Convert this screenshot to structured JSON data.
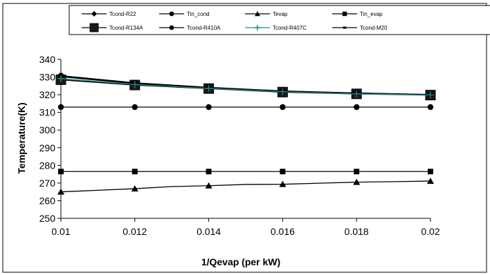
{
  "chart_data": {
    "type": "line",
    "title": "",
    "xlabel": "1/Qevap (per kW)",
    "ylabel": "Temperature(K)",
    "x": [
      0.01,
      0.012,
      0.014,
      0.016,
      0.018,
      0.02
    ],
    "x_tick_labels": [
      "0.01",
      "0.012",
      "0.014",
      "0.016",
      "0.018",
      "0.02"
    ],
    "xlim": [
      0.01,
      0.02
    ],
    "ylim": [
      250,
      340
    ],
    "y_tick_labels": [
      "250",
      "260",
      "270",
      "280",
      "290",
      "300",
      "310",
      "320",
      "330",
      "340"
    ],
    "grid": false,
    "legend_position": "top",
    "series": [
      {
        "name": "Tcond-R22",
        "marker": "diamond",
        "color": "#000000",
        "x": [
          0.01,
          0.012,
          0.014,
          0.016,
          0.018,
          0.02
        ],
        "values": [
          330.5,
          326.5,
          324,
          322,
          321,
          320
        ]
      },
      {
        "name": "Tin_cond",
        "marker": "circle",
        "color": "#000000",
        "x": [
          0.01,
          0.012,
          0.014,
          0.016,
          0.018,
          0.02
        ],
        "values": [
          313,
          313,
          313,
          313,
          313,
          313
        ]
      },
      {
        "name": "Tevap",
        "marker": "triangle",
        "color": "#000000",
        "x": [
          0.01,
          0.012,
          0.013,
          0.014,
          0.015,
          0.016,
          0.017,
          0.018,
          0.019,
          0.02
        ],
        "values": [
          265,
          266.8,
          268,
          268.5,
          269.2,
          269.3,
          269.9,
          270.5,
          270.8,
          271.1
        ],
        "marker_x": [
          0.01,
          0.012,
          0.014,
          0.016,
          0.018,
          0.02
        ]
      },
      {
        "name": "Tin_evap",
        "marker": "square",
        "color": "#000000",
        "x": [
          0.01,
          0.012,
          0.014,
          0.016,
          0.018,
          0.02
        ],
        "values": [
          276.5,
          276.5,
          276.5,
          276.5,
          276.5,
          276.5
        ]
      },
      {
        "name": "Tcond-R134A",
        "marker": "big-square",
        "color": "#000000",
        "x": [
          0.01,
          0.012,
          0.014,
          0.016,
          0.018,
          0.02
        ],
        "values": [
          328.5,
          325.5,
          323.5,
          321.5,
          320.5,
          319.8
        ]
      },
      {
        "name": "Tcond-R410A",
        "marker": "circle",
        "color": "#000000",
        "x": [
          0.01,
          0.012,
          0.014,
          0.016,
          0.018,
          0.02
        ],
        "values": [
          330.8,
          326.8,
          324.2,
          322.2,
          321,
          320.2
        ]
      },
      {
        "name": "Tcond-R407C",
        "marker": "plus",
        "color": "#1f8a8a",
        "x": [
          0.01,
          0.012,
          0.014,
          0.016,
          0.018,
          0.02
        ],
        "values": [
          329.2,
          325.8,
          323.6,
          321.7,
          320.5,
          319.9
        ]
      },
      {
        "name": "Tcond-M20",
        "marker": "dash",
        "color": "#000000",
        "x": [
          0.01,
          0.012,
          0.014,
          0.016,
          0.018,
          0.02
        ],
        "values": [
          330.2,
          326.2,
          323.9,
          321.9,
          320.8,
          320.1
        ]
      }
    ]
  }
}
